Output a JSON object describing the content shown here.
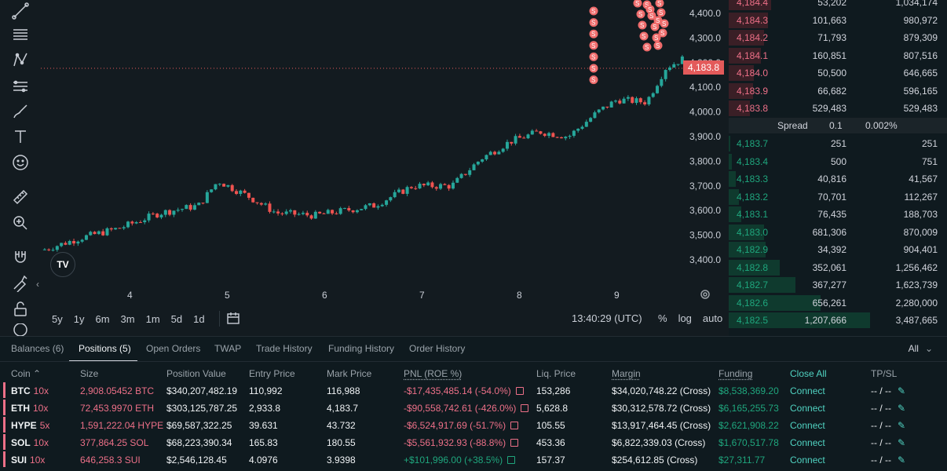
{
  "chart": {
    "price_ticks": [
      "4,400.0",
      "4,300.0",
      "4,200.0",
      "4,100.0",
      "4,000.0",
      "3,900.0",
      "3,800.0",
      "3,700.0",
      "3,600.0",
      "3,500.0",
      "3,400.0"
    ],
    "date_ticks": [
      "4",
      "5",
      "6",
      "7",
      "8",
      "9"
    ],
    "current_price": "4,183.8",
    "logo_text": "TV",
    "ranges": [
      "5y",
      "1y",
      "6m",
      "3m",
      "1m",
      "5d",
      "1d"
    ],
    "time": "13:40:29 (UTC)",
    "opts": [
      "%",
      "log",
      "auto"
    ],
    "marker_letter": "S",
    "colors": {
      "up": "#26a69a",
      "down": "#ef5350",
      "bg": "#131b20"
    }
  },
  "chart_data": {
    "type": "line",
    "title": "",
    "xlabel": "",
    "ylabel": "",
    "x_ticks": [
      "4",
      "5",
      "6",
      "7",
      "8",
      "9"
    ],
    "ylim": [
      3350,
      4450
    ],
    "series": [
      {
        "x": [
          3.1,
          3.5,
          3.9,
          4.3,
          4.7,
          4.9,
          5.2,
          5.5,
          5.9,
          6.2,
          6.5,
          6.9,
          7.3,
          7.6,
          7.9,
          8.2,
          8.5,
          8.8,
          9.0,
          9.3,
          9.5,
          9.7
        ],
        "values": [
          3440,
          3490,
          3530,
          3590,
          3620,
          3720,
          3660,
          3590,
          3580,
          3600,
          3620,
          3700,
          3700,
          3810,
          3880,
          3920,
          3900,
          4000,
          4050,
          4040,
          4180,
          4220
        ]
      }
    ]
  },
  "orderbook": {
    "asks": [
      {
        "price": "4,184.4",
        "size": "53,202",
        "total": "1,034,174",
        "depth": 0.3
      },
      {
        "price": "4,184.3",
        "size": "101,663",
        "total": "980,972",
        "depth": 0.28
      },
      {
        "price": "4,184.2",
        "size": "71,793",
        "total": "879,309",
        "depth": 0.25
      },
      {
        "price": "4,184.1",
        "size": "160,851",
        "total": "807,516",
        "depth": 0.23
      },
      {
        "price": "4,184.0",
        "size": "50,500",
        "total": "646,665",
        "depth": 0.18
      },
      {
        "price": "4,183.9",
        "size": "66,682",
        "total": "596,165",
        "depth": 0.17
      },
      {
        "price": "4,183.8",
        "size": "529,483",
        "total": "529,483",
        "depth": 0.15
      }
    ],
    "spread": {
      "label": "Spread",
      "value": "0.1",
      "pct": "0.002%"
    },
    "bids": [
      {
        "price": "4,183.7",
        "size": "251",
        "total": "251",
        "depth": 0.01
      },
      {
        "price": "4,183.4",
        "size": "500",
        "total": "751",
        "depth": 0.02
      },
      {
        "price": "4,183.3",
        "size": "40,816",
        "total": "41,567",
        "depth": 0.05
      },
      {
        "price": "4,183.2",
        "size": "70,701",
        "total": "112,267",
        "depth": 0.07
      },
      {
        "price": "4,183.1",
        "size": "76,435",
        "total": "188,703",
        "depth": 0.09
      },
      {
        "price": "4,183.0",
        "size": "681,306",
        "total": "870,009",
        "depth": 0.25
      },
      {
        "price": "4,182.9",
        "size": "34,392",
        "total": "904,401",
        "depth": 0.26
      },
      {
        "price": "4,182.8",
        "size": "352,061",
        "total": "1,256,462",
        "depth": 0.36
      },
      {
        "price": "4,182.7",
        "size": "367,277",
        "total": "1,623,739",
        "depth": 0.47
      },
      {
        "price": "4,182.6",
        "size": "656,261",
        "total": "2,280,000",
        "depth": 0.65
      },
      {
        "price": "4,182.5",
        "size": "1,207,666",
        "total": "3,487,665",
        "depth": 1.0
      }
    ]
  },
  "tabs": [
    "Balances (6)",
    "Positions (5)",
    "Open Orders",
    "TWAP",
    "Trade History",
    "Funding History",
    "Order History"
  ],
  "filter": "All",
  "table": {
    "headers": {
      "coin": "Coin",
      "size": "Size",
      "value": "Position Value",
      "entry": "Entry Price",
      "mark": "Mark Price",
      "pnl": "PNL (ROE %)",
      "liq": "Liq. Price",
      "margin": "Margin",
      "funding": "Funding",
      "close_all": "Close All",
      "tpsl": "TP/SL"
    },
    "rows": [
      {
        "coin": "BTC",
        "lev": "10x",
        "size": "2,908.05452 BTC",
        "value": "$340,207,482.19",
        "entry": "110,992",
        "mark": "116,988",
        "pnl": "-$17,435,485.14 (-54.0%)",
        "liq": "153,286",
        "margin": "$34,020,748.22 (Cross)",
        "funding": "$8,538,369.20",
        "action": "Connect",
        "tpsl": "-- / --",
        "pnl_positive": false
      },
      {
        "coin": "ETH",
        "lev": "10x",
        "size": "72,453.9970 ETH",
        "value": "$303,125,787.25",
        "entry": "2,933.8",
        "mark": "4,183.7",
        "pnl": "-$90,558,742.61 (-426.0%)",
        "liq": "5,628.8",
        "margin": "$30,312,578.72 (Cross)",
        "funding": "$6,165,255.73",
        "action": "Connect",
        "tpsl": "-- / --",
        "pnl_positive": false
      },
      {
        "coin": "HYPE",
        "lev": "5x",
        "size": "1,591,222.04 HYPE",
        "value": "$69,587,322.25",
        "entry": "39.631",
        "mark": "43.732",
        "pnl": "-$6,524,917.69 (-51.7%)",
        "liq": "105.55",
        "margin": "$13,917,464.45 (Cross)",
        "funding": "$2,621,908.22",
        "action": "Connect",
        "tpsl": "-- / --",
        "pnl_positive": false
      },
      {
        "coin": "SOL",
        "lev": "10x",
        "size": "377,864.25 SOL",
        "value": "$68,223,390.34",
        "entry": "165.83",
        "mark": "180.55",
        "pnl": "-$5,561,932.93 (-88.8%)",
        "liq": "453.36",
        "margin": "$6,822,339.03 (Cross)",
        "funding": "$1,670,517.78",
        "action": "Connect",
        "tpsl": "-- / --",
        "pnl_positive": false
      },
      {
        "coin": "SUI",
        "lev": "10x",
        "size": "646,258.3 SUI",
        "value": "$2,546,128.45",
        "entry": "4.0976",
        "mark": "3.9398",
        "pnl": "+$101,996.00 (+38.5%)",
        "liq": "157.37",
        "margin": "$254,612.85 (Cross)",
        "funding": "$27,311.77",
        "action": "Connect",
        "tpsl": "-- / --",
        "pnl_positive": true
      }
    ]
  }
}
